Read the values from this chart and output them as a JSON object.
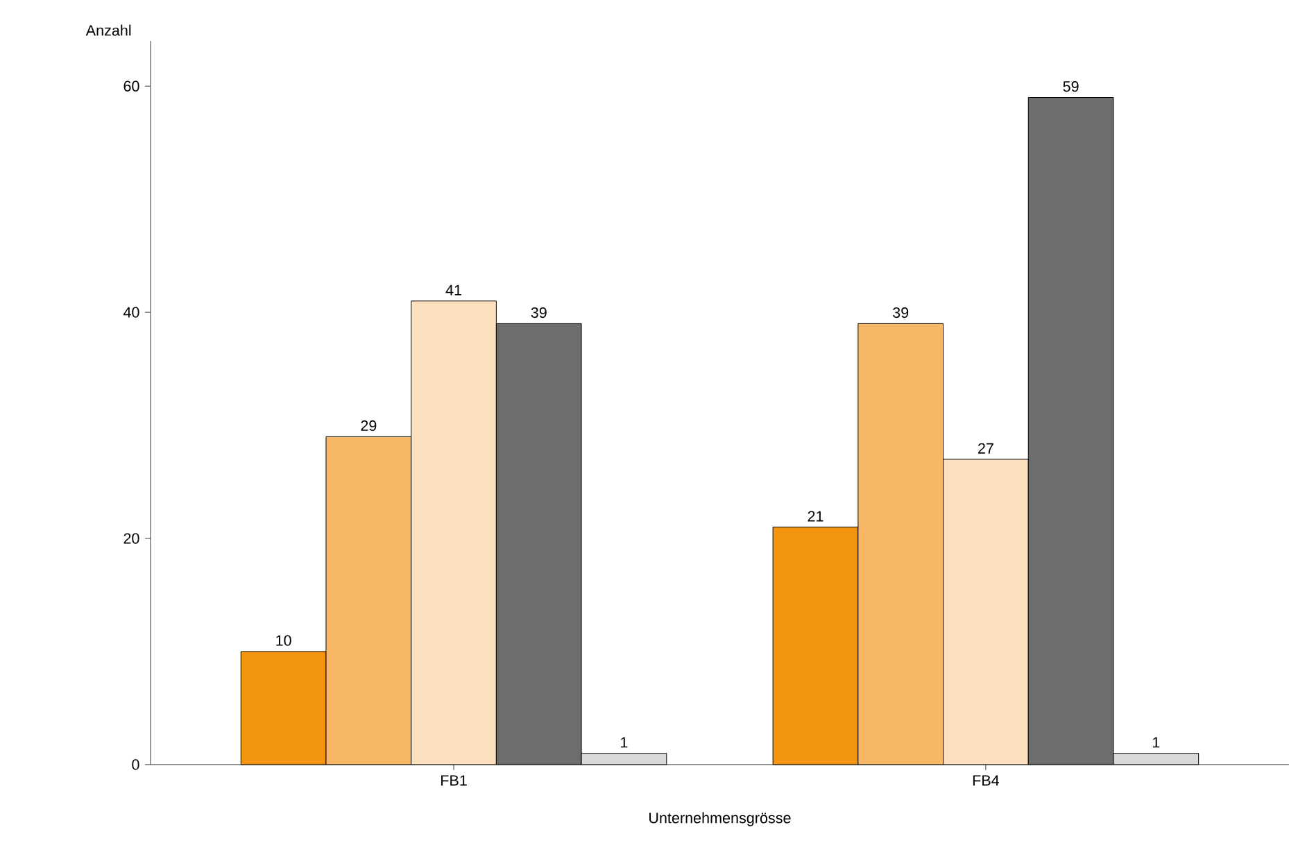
{
  "chart_data": {
    "type": "bar",
    "xlabel": "Unternehmensgrösse",
    "ylabel": "Anzahl",
    "categories": [
      "FB1",
      "FB4"
    ],
    "series": [
      {
        "color": "#f39410",
        "values": [
          10,
          21
        ]
      },
      {
        "color": "#f9b868",
        "values": [
          29,
          39
        ]
      },
      {
        "color": "#fde0bd",
        "values": [
          41,
          27
        ]
      },
      {
        "color": "#6d6d6b",
        "values": [
          39,
          59
        ]
      },
      {
        "color": "#d9d9d9",
        "values": [
          1,
          1
        ]
      }
    ],
    "ylim": [
      0,
      64
    ],
    "yticks": [
      0,
      20,
      40,
      60
    ],
    "data_labels": true
  }
}
